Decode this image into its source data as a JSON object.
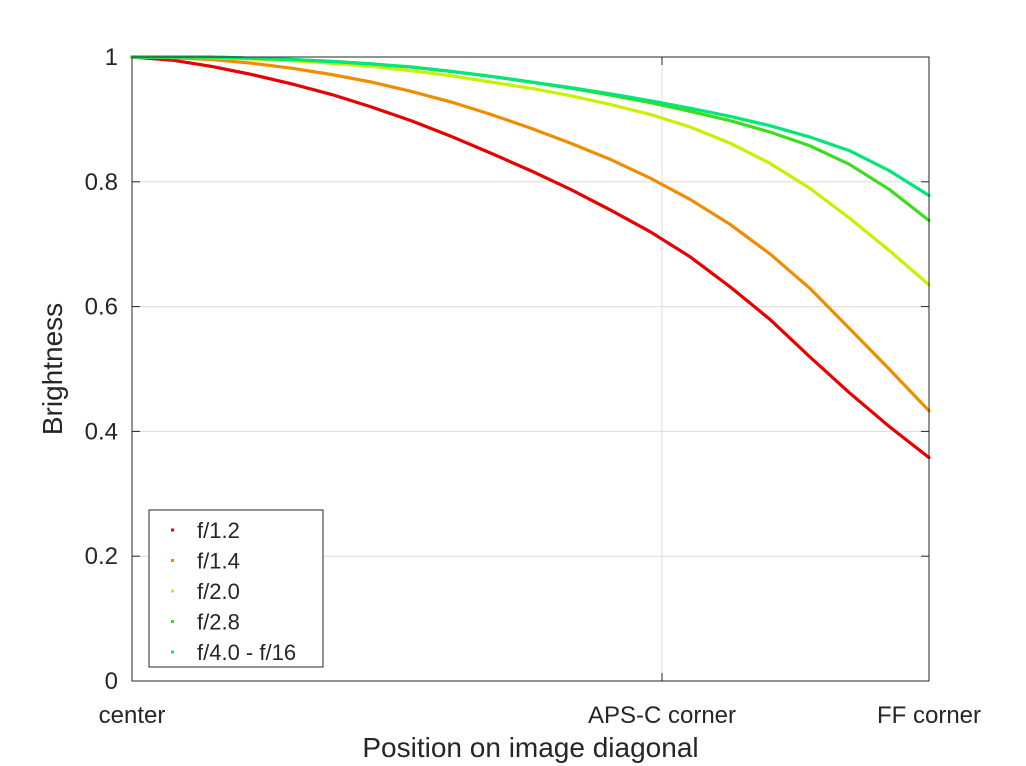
{
  "chart_data": {
    "type": "line",
    "xlabel": "Position on image diagonal",
    "ylabel": "Brightness",
    "xlim": [
      0,
      1
    ],
    "ylim": [
      0,
      1
    ],
    "x_ticks": [
      {
        "value": 0,
        "label": "center"
      },
      {
        "value": 0.665,
        "label": "APS-C corner"
      },
      {
        "value": 1,
        "label": "FF corner"
      }
    ],
    "y_ticks": [
      {
        "value": 0,
        "label": "0"
      },
      {
        "value": 0.2,
        "label": "0.2"
      },
      {
        "value": 0.4,
        "label": "0.4"
      },
      {
        "value": 0.6,
        "label": "0.6"
      },
      {
        "value": 0.8,
        "label": "0.8"
      },
      {
        "value": 1,
        "label": "1"
      }
    ],
    "grid": true,
    "legend_position": "bottom-left",
    "series": [
      {
        "name": "f/1.2",
        "color": "#e60000",
        "x": [
          0,
          0.05,
          0.1,
          0.15,
          0.2,
          0.25,
          0.3,
          0.35,
          0.4,
          0.45,
          0.5,
          0.55,
          0.6,
          0.65,
          0.7,
          0.75,
          0.8,
          0.85,
          0.9,
          0.95,
          1.0
        ],
        "y": [
          1.0,
          0.995,
          0.985,
          0.972,
          0.957,
          0.94,
          0.92,
          0.898,
          0.873,
          0.846,
          0.818,
          0.788,
          0.755,
          0.72,
          0.68,
          0.632,
          0.58,
          0.52,
          0.462,
          0.408,
          0.358
        ]
      },
      {
        "name": "f/1.4",
        "color": "#f08c00",
        "x": [
          0,
          0.05,
          0.1,
          0.15,
          0.2,
          0.25,
          0.3,
          0.35,
          0.4,
          0.45,
          0.5,
          0.55,
          0.6,
          0.65,
          0.7,
          0.75,
          0.8,
          0.85,
          0.9,
          0.95,
          1.0
        ],
        "y": [
          1.0,
          0.999,
          0.996,
          0.99,
          0.982,
          0.972,
          0.96,
          0.945,
          0.928,
          0.908,
          0.886,
          0.862,
          0.836,
          0.806,
          0.772,
          0.732,
          0.685,
          0.63,
          0.565,
          0.5,
          0.433
        ]
      },
      {
        "name": "f/2.0",
        "color": "#c8f000",
        "x": [
          0,
          0.05,
          0.1,
          0.15,
          0.2,
          0.25,
          0.3,
          0.35,
          0.4,
          0.45,
          0.5,
          0.55,
          0.6,
          0.65,
          0.7,
          0.75,
          0.8,
          0.85,
          0.9,
          0.95,
          1.0
        ],
        "y": [
          1.0,
          1.0,
          0.999,
          0.997,
          0.994,
          0.99,
          0.985,
          0.978,
          0.97,
          0.96,
          0.95,
          0.938,
          0.924,
          0.908,
          0.888,
          0.862,
          0.83,
          0.79,
          0.742,
          0.69,
          0.635
        ]
      },
      {
        "name": "f/2.8",
        "color": "#3cdc1e",
        "x": [
          0,
          0.05,
          0.1,
          0.15,
          0.2,
          0.25,
          0.3,
          0.35,
          0.4,
          0.45,
          0.5,
          0.55,
          0.6,
          0.65,
          0.7,
          0.75,
          0.8,
          0.85,
          0.9,
          0.95,
          1.0
        ],
        "y": [
          1.0,
          1.0,
          1.0,
          0.998,
          0.996,
          0.993,
          0.989,
          0.984,
          0.977,
          0.969,
          0.96,
          0.95,
          0.939,
          0.927,
          0.913,
          0.898,
          0.88,
          0.858,
          0.828,
          0.788,
          0.738
        ]
      },
      {
        "name": "f/4.0 - f/16",
        "color": "#00e678",
        "x": [
          0,
          0.05,
          0.1,
          0.15,
          0.2,
          0.25,
          0.3,
          0.35,
          0.4,
          0.45,
          0.5,
          0.55,
          0.6,
          0.65,
          0.7,
          0.75,
          0.8,
          0.85,
          0.9,
          0.95,
          1.0
        ],
        "y": [
          1.0,
          1.0,
          1.0,
          0.998,
          0.996,
          0.993,
          0.989,
          0.984,
          0.977,
          0.969,
          0.96,
          0.951,
          0.941,
          0.93,
          0.918,
          0.905,
          0.89,
          0.872,
          0.85,
          0.818,
          0.778
        ]
      }
    ]
  }
}
